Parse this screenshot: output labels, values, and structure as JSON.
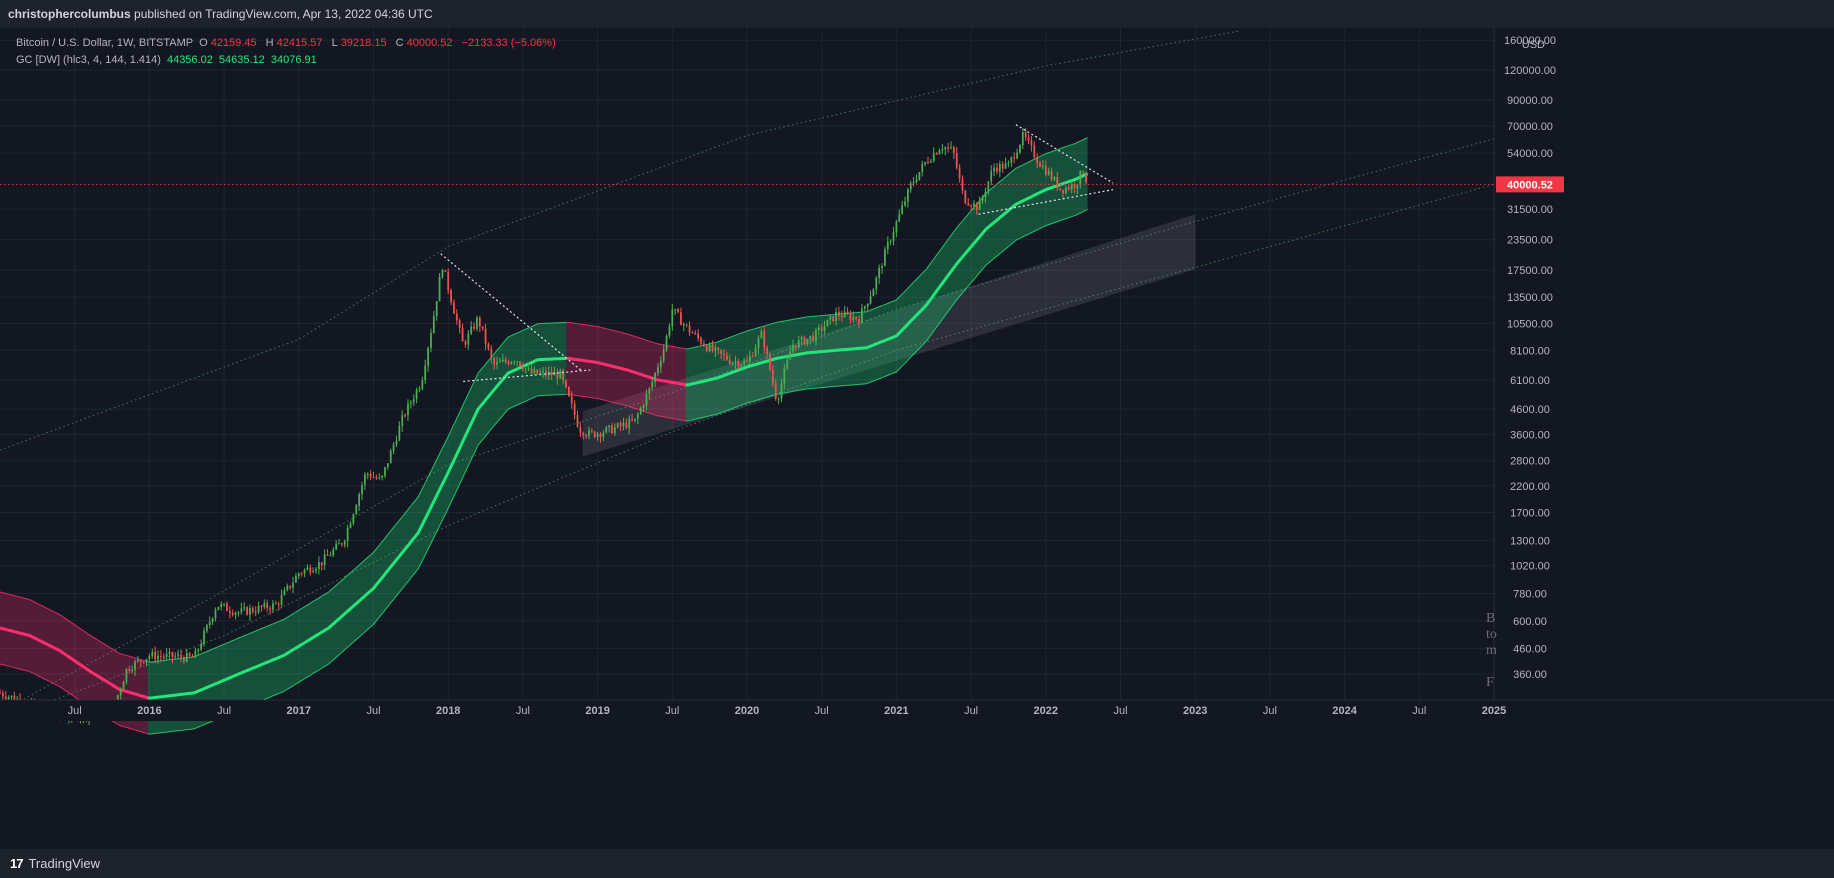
{
  "header": {
    "author": "christophercolumbus",
    "published_text": "published on TradingView.com, Apr 13, 2022 04:36 UTC"
  },
  "legend": {
    "symbol_line": "Bitcoin / U.S. Dollar, 1W, BITSTAMP",
    "o_label": "O",
    "o_value": "42159.45",
    "h_label": "H",
    "h_value": "42415.57",
    "l_label": "L",
    "l_value": "39218.15",
    "c_label": "C",
    "c_value": "40000.52",
    "change": "−2133.33 (−5.06%)",
    "indicator_label": "GC [DW] (hlc3, 4, 144, 1.414)",
    "ind_value_1": "44356.02",
    "ind_value_2": "54635.12",
    "ind_value_3": "34076.91"
  },
  "footer": {
    "logo_text": "17",
    "brand": "TradingView"
  },
  "colors": {
    "background": "#131722",
    "bar": "#1e222d",
    "up": "#4caf50",
    "down": "#ef5350",
    "band_green": "#22e67a",
    "band_pink": "#ff2e6e",
    "price_tag": "#f23645"
  },
  "chart_data": {
    "type": "candlestick",
    "title": "Bitcoin / U.S. Dollar, 1W, BITSTAMP",
    "scale": "log",
    "currency_label": "USD",
    "current_price_label": "40000.52",
    "current_price": 40000.52,
    "ylim": [
      280,
      180000
    ],
    "xlim_years": [
      2015.0,
      2025.0
    ],
    "y_ticks": [
      {
        "value": 160000,
        "label": "160000.00"
      },
      {
        "value": 120000,
        "label": "120000.00"
      },
      {
        "value": 90000,
        "label": "90000.00"
      },
      {
        "value": 70000,
        "label": "70000.00"
      },
      {
        "value": 54000,
        "label": "54000.00"
      },
      {
        "value": 31500,
        "label": "31500.00"
      },
      {
        "value": 23500,
        "label": "23500.00"
      },
      {
        "value": 17500,
        "label": "17500.00"
      },
      {
        "value": 13500,
        "label": "13500.00"
      },
      {
        "value": 10500,
        "label": "10500.00"
      },
      {
        "value": 8100,
        "label": "8100.00"
      },
      {
        "value": 6100,
        "label": "6100.00"
      },
      {
        "value": 4600,
        "label": "4600.00"
      },
      {
        "value": 3600,
        "label": "3600.00"
      },
      {
        "value": 2800,
        "label": "2800.00"
      },
      {
        "value": 2200,
        "label": "2200.00"
      },
      {
        "value": 1700,
        "label": "1700.00"
      },
      {
        "value": 1300,
        "label": "1300.00"
      },
      {
        "value": 1020,
        "label": "1020.00"
      },
      {
        "value": 780,
        "label": "780.00"
      },
      {
        "value": 600,
        "label": "600.00"
      },
      {
        "value": 460,
        "label": "460.00"
      },
      {
        "value": 360,
        "label": "360.00"
      }
    ],
    "x_ticks": [
      {
        "t": 2015.5,
        "label": "Jul"
      },
      {
        "t": 2016.0,
        "label": "2016"
      },
      {
        "t": 2016.5,
        "label": "Jul"
      },
      {
        "t": 2017.0,
        "label": "2017"
      },
      {
        "t": 2017.5,
        "label": "Jul"
      },
      {
        "t": 2018.0,
        "label": "2018"
      },
      {
        "t": 2018.5,
        "label": "Jul"
      },
      {
        "t": 2019.0,
        "label": "2019"
      },
      {
        "t": 2019.5,
        "label": "Jul"
      },
      {
        "t": 2020.0,
        "label": "2020"
      },
      {
        "t": 2020.5,
        "label": "Jul"
      },
      {
        "t": 2021.0,
        "label": "2021"
      },
      {
        "t": 2021.5,
        "label": "Jul"
      },
      {
        "t": 2022.0,
        "label": "2022"
      },
      {
        "t": 2022.5,
        "label": "Jul"
      },
      {
        "t": 2023.0,
        "label": "2023"
      },
      {
        "t": 2023.5,
        "label": "Jul"
      },
      {
        "t": 2024.0,
        "label": "2024"
      },
      {
        "t": 2024.5,
        "label": "Jul"
      },
      {
        "t": 2025.0,
        "label": "2025"
      }
    ],
    "price_path": [
      [
        2015.0,
        300
      ],
      [
        2015.4,
        240
      ],
      [
        2015.75,
        250
      ],
      [
        2015.85,
        380
      ],
      [
        2016.0,
        430
      ],
      [
        2016.3,
        420
      ],
      [
        2016.45,
        700
      ],
      [
        2016.6,
        650
      ],
      [
        2016.85,
        700
      ],
      [
        2017.0,
        950
      ],
      [
        2017.15,
        1050
      ],
      [
        2017.3,
        1300
      ],
      [
        2017.45,
        2500
      ],
      [
        2017.55,
        2300
      ],
      [
        2017.7,
        4300
      ],
      [
        2017.82,
        6000
      ],
      [
        2017.9,
        11000
      ],
      [
        2017.96,
        18500
      ],
      [
        2018.1,
        8500
      ],
      [
        2018.2,
        11000
      ],
      [
        2018.3,
        7000
      ],
      [
        2018.45,
        7500
      ],
      [
        2018.55,
        6500
      ],
      [
        2018.75,
        6400
      ],
      [
        2018.88,
        3800
      ],
      [
        2018.95,
        3600
      ],
      [
        2019.1,
        3800
      ],
      [
        2019.25,
        4100
      ],
      [
        2019.35,
        5600
      ],
      [
        2019.45,
        8500
      ],
      [
        2019.5,
        12000
      ],
      [
        2019.6,
        10000
      ],
      [
        2019.75,
        8200
      ],
      [
        2019.9,
        7300
      ],
      [
        2020.0,
        7200
      ],
      [
        2020.1,
        9500
      ],
      [
        2020.2,
        5000
      ],
      [
        2020.3,
        8500
      ],
      [
        2020.45,
        9300
      ],
      [
        2020.6,
        11500
      ],
      [
        2020.75,
        11000
      ],
      [
        2020.85,
        15000
      ],
      [
        2020.95,
        23000
      ],
      [
        2021.1,
        40000
      ],
      [
        2021.2,
        50000
      ],
      [
        2021.3,
        58000
      ],
      [
        2021.38,
        55000
      ],
      [
        2021.45,
        35000
      ],
      [
        2021.55,
        32000
      ],
      [
        2021.65,
        47000
      ],
      [
        2021.75,
        48000
      ],
      [
        2021.85,
        64000
      ],
      [
        2021.95,
        50000
      ],
      [
        2022.05,
        42000
      ],
      [
        2022.1,
        38000
      ],
      [
        2022.2,
        40000
      ],
      [
        2022.25,
        46000
      ],
      [
        2022.28,
        40000
      ]
    ],
    "indicator": {
      "name": "GC [DW] (hlc3, 4, 144, 1.414)",
      "basis": [
        [
          2015.0,
          560
        ],
        [
          2015.2,
          520
        ],
        [
          2015.4,
          450
        ],
        [
          2015.6,
          370
        ],
        [
          2015.8,
          310
        ],
        [
          2016.0,
          285
        ],
        [
          2016.3,
          300
        ],
        [
          2016.6,
          360
        ],
        [
          2016.9,
          430
        ],
        [
          2017.2,
          560
        ],
        [
          2017.5,
          820
        ],
        [
          2017.8,
          1400
        ],
        [
          2018.0,
          2500
        ],
        [
          2018.2,
          4600
        ],
        [
          2018.4,
          6500
        ],
        [
          2018.6,
          7400
        ],
        [
          2018.8,
          7500
        ],
        [
          2019.0,
          7200
        ],
        [
          2019.2,
          6700
        ],
        [
          2019.4,
          6100
        ],
        [
          2019.6,
          5800
        ],
        [
          2019.8,
          6200
        ],
        [
          2020.0,
          6900
        ],
        [
          2020.2,
          7500
        ],
        [
          2020.4,
          7900
        ],
        [
          2020.6,
          8100
        ],
        [
          2020.8,
          8300
        ],
        [
          2021.0,
          9300
        ],
        [
          2021.2,
          12500
        ],
        [
          2021.4,
          18500
        ],
        [
          2021.6,
          26000
        ],
        [
          2021.8,
          33000
        ],
        [
          2022.0,
          38000
        ],
        [
          2022.2,
          42000
        ],
        [
          2022.28,
          44356.02
        ]
      ],
      "upper_value": 54635.12,
      "lower_value": 34076.91,
      "band_ratio": 1.414
    },
    "annotations": [
      {
        "type": "trendline",
        "from": [
          2017.95,
          20500
        ],
        "to": [
          2018.9,
          6600
        ]
      },
      {
        "type": "trendline",
        "from": [
          2018.1,
          6000
        ],
        "to": [
          2018.95,
          6700
        ]
      },
      {
        "type": "trendline",
        "from": [
          2021.8,
          71000
        ],
        "to": [
          2022.45,
          40500
        ]
      },
      {
        "type": "trendline",
        "from": [
          2021.55,
          30000
        ],
        "to": [
          2022.45,
          38000
        ]
      },
      {
        "type": "grey_channel",
        "from": [
          2018.9,
          4500
        ],
        "to": [
          2023.0,
          30000
        ],
        "width_ratio": 1.7
      },
      {
        "type": "guide_curve",
        "points": [
          [
            2015.0,
            3100
          ],
          [
            2017.0,
            9000
          ],
          [
            2018.0,
            22000
          ],
          [
            2020.0,
            64000
          ],
          [
            2022.0,
            125000
          ],
          [
            2023.3,
            175000
          ]
        ]
      },
      {
        "type": "guide_curve",
        "points": [
          [
            2015.0,
            250
          ],
          [
            2016.5,
            800
          ],
          [
            2018.0,
            2700
          ],
          [
            2019.5,
            5400
          ],
          [
            2021.0,
            12000
          ],
          [
            2023.0,
            28000
          ],
          [
            2025.0,
            62000
          ]
        ]
      },
      {
        "type": "guide_curve",
        "points": [
          [
            2015.0,
            230
          ],
          [
            2016.5,
            520
          ],
          [
            2018.0,
            1500
          ],
          [
            2019.5,
            3700
          ],
          [
            2021.0,
            8100
          ],
          [
            2023.0,
            18000
          ],
          [
            2025.0,
            40000
          ]
        ]
      }
    ],
    "watermark_chars": [
      "B",
      "to",
      "m",
      "F"
    ]
  }
}
